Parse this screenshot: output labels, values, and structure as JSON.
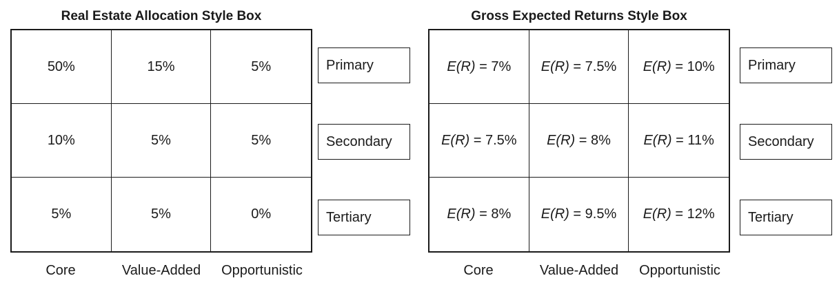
{
  "allocation_box": {
    "title": "Real Estate Allocation Style Box",
    "rows": [
      [
        "50%",
        "15%",
        "5%"
      ],
      [
        "10%",
        "5%",
        "5%"
      ],
      [
        "5%",
        "5%",
        "0%"
      ]
    ],
    "row_labels": [
      "Primary",
      "Secondary",
      "Tertiary"
    ],
    "column_labels": [
      "Core",
      "Value-Added",
      "Opportunistic"
    ]
  },
  "returns_box": {
    "title": "Gross Expected Returns Style Box",
    "er_prefix": "E(R)",
    "rows": [
      [
        "7%",
        "7.5%",
        "10%"
      ],
      [
        "7.5%",
        "8%",
        "11%"
      ],
      [
        "8%",
        "9.5%",
        "12%"
      ]
    ],
    "row_labels": [
      "Primary",
      "Secondary",
      "Tertiary"
    ],
    "column_labels": [
      "Core",
      "Value-Added",
      "Opportunistic"
    ]
  }
}
